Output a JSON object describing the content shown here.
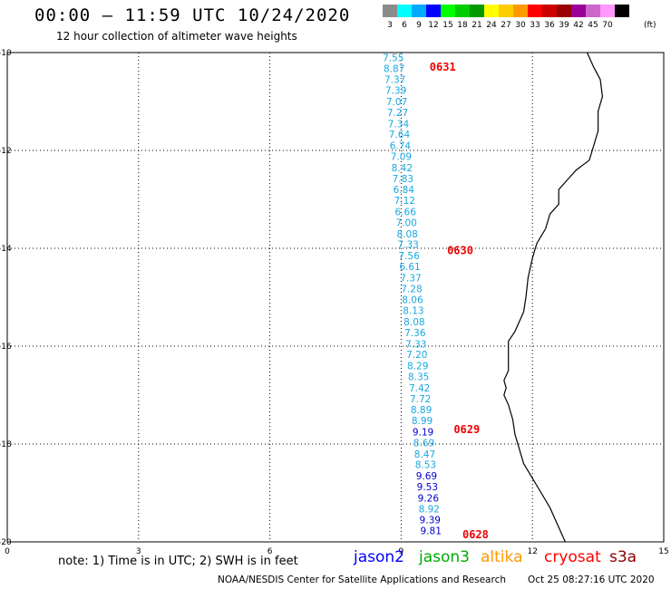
{
  "header": {
    "title": "00:00 – 11:59 UTC 10/24/2020",
    "subtitle": "12 hour collection of altimeter wave heights"
  },
  "legend": {
    "unit": "(ft)",
    "items": [
      {
        "label": "3",
        "color": "#8c8c8c"
      },
      {
        "label": "6",
        "color": "#00ffff"
      },
      {
        "label": "9",
        "color": "#00aaff"
      },
      {
        "label": "12",
        "color": "#0000ff"
      },
      {
        "label": "15",
        "color": "#00ff00"
      },
      {
        "label": "18",
        "color": "#00cc00"
      },
      {
        "label": "21",
        "color": "#009900"
      },
      {
        "label": "24",
        "color": "#ffff00"
      },
      {
        "label": "27",
        "color": "#ffcc00"
      },
      {
        "label": "30",
        "color": "#ff9900"
      },
      {
        "label": "33",
        "color": "#ff0000"
      },
      {
        "label": "36",
        "color": "#cc0000"
      },
      {
        "label": "39",
        "color": "#990000"
      },
      {
        "label": "42",
        "color": "#990099"
      },
      {
        "label": "45",
        "color": "#cc66cc"
      },
      {
        "label": "70",
        "color": "#ff99ff"
      },
      {
        "label": "",
        "color": "#000000"
      }
    ]
  },
  "axes": {
    "x_ticks": [
      "0",
      "3",
      "6",
      "9",
      "12",
      "15"
    ],
    "y_ticks": [
      "-10",
      "-12",
      "-14",
      "-16",
      "-18",
      "-20"
    ],
    "x_range": [
      0,
      15
    ],
    "y_range": [
      -20,
      -10
    ]
  },
  "chart_data": {
    "type": "scatter",
    "title": "00:00 – 11:59 UTC 10/24/2020",
    "subtitle": "12 hour collection of altimeter wave heights",
    "xlim": [
      0,
      15
    ],
    "ylim": [
      -20,
      -10
    ],
    "grid": true,
    "time_labels": [
      {
        "text": "0631",
        "lon": 9.65,
        "lat": -10.3
      },
      {
        "text": "0630",
        "lon": 10.05,
        "lat": -14.05
      },
      {
        "text": "0629",
        "lon": 10.2,
        "lat": -17.7
      },
      {
        "text": "0628",
        "lon": 10.4,
        "lat": -19.85
      }
    ],
    "points": [
      {
        "lon": 8.82,
        "lat": -10.1,
        "v": "7.55",
        "c": "#1aa7e0"
      },
      {
        "lon": 8.84,
        "lat": -10.32,
        "v": "8.87",
        "c": "#1aa7e0"
      },
      {
        "lon": 8.86,
        "lat": -10.55,
        "v": "7.37",
        "c": "#1aa7e0"
      },
      {
        "lon": 8.88,
        "lat": -10.77,
        "v": "7.39",
        "c": "#1aa7e0"
      },
      {
        "lon": 8.9,
        "lat": -11.0,
        "v": "7.07",
        "c": "#1aa7e0"
      },
      {
        "lon": 8.92,
        "lat": -11.22,
        "v": "7.27",
        "c": "#1aa7e0"
      },
      {
        "lon": 8.94,
        "lat": -11.45,
        "v": "7.34",
        "c": "#1aa7e0"
      },
      {
        "lon": 8.96,
        "lat": -11.67,
        "v": "7.64",
        "c": "#1aa7e0"
      },
      {
        "lon": 8.98,
        "lat": -11.9,
        "v": "6.74",
        "c": "#1aa7e0"
      },
      {
        "lon": 9.0,
        "lat": -12.12,
        "v": "7.09",
        "c": "#1aa7e0"
      },
      {
        "lon": 9.02,
        "lat": -12.35,
        "v": "8.42",
        "c": "#1aa7e0"
      },
      {
        "lon": 9.04,
        "lat": -12.57,
        "v": "7.83",
        "c": "#1aa7e0"
      },
      {
        "lon": 9.06,
        "lat": -12.8,
        "v": "6.84",
        "c": "#1aa7e0"
      },
      {
        "lon": 9.08,
        "lat": -13.02,
        "v": "7.12",
        "c": "#1aa7e0"
      },
      {
        "lon": 9.1,
        "lat": -13.25,
        "v": "6.66",
        "c": "#1aa7e0"
      },
      {
        "lon": 9.12,
        "lat": -13.47,
        "v": "7.00",
        "c": "#1aa7e0"
      },
      {
        "lon": 9.14,
        "lat": -13.7,
        "v": "8.08",
        "c": "#1aa7e0"
      },
      {
        "lon": 9.16,
        "lat": -13.92,
        "v": "7.33",
        "c": "#1aa7e0"
      },
      {
        "lon": 9.18,
        "lat": -14.15,
        "v": "7.56",
        "c": "#1aa7e0"
      },
      {
        "lon": 9.2,
        "lat": -14.37,
        "v": "6.61",
        "c": "#1aa7e0"
      },
      {
        "lon": 9.22,
        "lat": -14.6,
        "v": "7.37",
        "c": "#1aa7e0"
      },
      {
        "lon": 9.24,
        "lat": -14.82,
        "v": "7.28",
        "c": "#1aa7e0"
      },
      {
        "lon": 9.26,
        "lat": -15.05,
        "v": "8.06",
        "c": "#1aa7e0"
      },
      {
        "lon": 9.28,
        "lat": -15.27,
        "v": "8.13",
        "c": "#1aa7e0"
      },
      {
        "lon": 9.3,
        "lat": -15.5,
        "v": "8.08",
        "c": "#1aa7e0"
      },
      {
        "lon": 9.32,
        "lat": -15.72,
        "v": "7.36",
        "c": "#1aa7e0"
      },
      {
        "lon": 9.34,
        "lat": -15.95,
        "v": "7.33",
        "c": "#1aa7e0"
      },
      {
        "lon": 9.36,
        "lat": -16.17,
        "v": "7.20",
        "c": "#1aa7e0"
      },
      {
        "lon": 9.38,
        "lat": -16.4,
        "v": "8.29",
        "c": "#1aa7e0"
      },
      {
        "lon": 9.4,
        "lat": -16.62,
        "v": "8.35",
        "c": "#1aa7e0"
      },
      {
        "lon": 9.42,
        "lat": -16.85,
        "v": "7.42",
        "c": "#1aa7e0"
      },
      {
        "lon": 9.44,
        "lat": -17.07,
        "v": "7.72",
        "c": "#1aa7e0"
      },
      {
        "lon": 9.46,
        "lat": -17.3,
        "v": "8.89",
        "c": "#1aa7e0"
      },
      {
        "lon": 9.48,
        "lat": -17.52,
        "v": "8.99",
        "c": "#1aa7e0"
      },
      {
        "lon": 9.5,
        "lat": -17.75,
        "v": "9.19",
        "c": "#0000cc"
      },
      {
        "lon": 9.52,
        "lat": -17.97,
        "v": "8.69",
        "c": "#1aa7e0"
      },
      {
        "lon": 9.54,
        "lat": -18.2,
        "v": "8.47",
        "c": "#1aa7e0"
      },
      {
        "lon": 9.56,
        "lat": -18.42,
        "v": "8.53",
        "c": "#1aa7e0"
      },
      {
        "lon": 9.58,
        "lat": -18.65,
        "v": "9.69",
        "c": "#0000cc"
      },
      {
        "lon": 9.6,
        "lat": -18.87,
        "v": "9.53",
        "c": "#0000cc"
      },
      {
        "lon": 9.62,
        "lat": -19.1,
        "v": "9.26",
        "c": "#0000cc"
      },
      {
        "lon": 9.64,
        "lat": -19.32,
        "v": "8.92",
        "c": "#1aa7e0"
      },
      {
        "lon": 9.66,
        "lat": -19.55,
        "v": "9.39",
        "c": "#0000cc"
      },
      {
        "lon": 9.68,
        "lat": -19.77,
        "v": "9.81",
        "c": "#0000cc"
      }
    ]
  },
  "coastline": [
    [
      13.25,
      -10
    ],
    [
      13.4,
      -10.3
    ],
    [
      13.55,
      -10.55
    ],
    [
      13.6,
      -10.9
    ],
    [
      13.5,
      -11.2
    ],
    [
      13.5,
      -11.6
    ],
    [
      13.4,
      -11.9
    ],
    [
      13.3,
      -12.2
    ],
    [
      13.0,
      -12.4
    ],
    [
      12.8,
      -12.6
    ],
    [
      12.6,
      -12.8
    ],
    [
      12.6,
      -13.1
    ],
    [
      12.4,
      -13.3
    ],
    [
      12.3,
      -13.6
    ],
    [
      12.1,
      -13.9
    ],
    [
      12.0,
      -14.2
    ],
    [
      11.9,
      -14.6
    ],
    [
      11.85,
      -15.0
    ],
    [
      11.8,
      -15.3
    ],
    [
      11.7,
      -15.5
    ],
    [
      11.6,
      -15.7
    ],
    [
      11.45,
      -15.9
    ],
    [
      11.45,
      -16.2
    ],
    [
      11.45,
      -16.5
    ],
    [
      11.35,
      -16.7
    ],
    [
      11.4,
      -16.85
    ],
    [
      11.35,
      -17.0
    ],
    [
      11.45,
      -17.2
    ],
    [
      11.55,
      -17.5
    ],
    [
      11.6,
      -17.8
    ],
    [
      11.7,
      -18.1
    ],
    [
      11.8,
      -18.4
    ],
    [
      12.0,
      -18.7
    ],
    [
      12.2,
      -19.0
    ],
    [
      12.4,
      -19.3
    ],
    [
      12.55,
      -19.6
    ],
    [
      12.7,
      -19.9
    ],
    [
      12.75,
      -20
    ]
  ],
  "footer": {
    "note": "note: 1) Time is in UTC; 2) SWH is in feet",
    "satellites": [
      {
        "name": "jason2",
        "color": "#0000ff"
      },
      {
        "name": "jason3",
        "color": "#00aa00"
      },
      {
        "name": "altika",
        "color": "#ff9900"
      },
      {
        "name": "cryosat",
        "color": "#ff0000"
      },
      {
        "name": "s3a",
        "color": "#8b0000"
      }
    ],
    "credit": "NOAA/NESDIS Center for Satellite Applications and Research",
    "timestamp": "Oct 25 08:27:16 UTC 2020"
  }
}
